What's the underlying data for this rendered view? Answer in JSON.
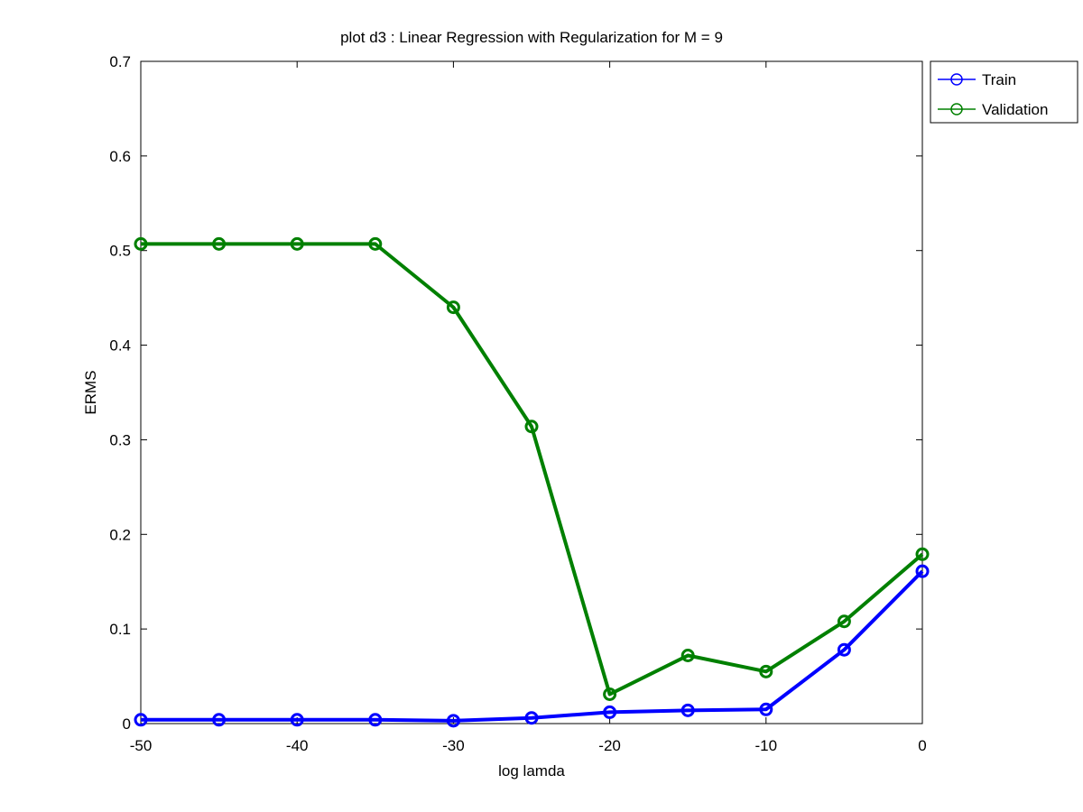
{
  "chart_data": {
    "type": "line",
    "title": "plot d3 : Linear Regression with Regularization for M = 9",
    "xlabel": "log lamda",
    "ylabel": "ERMS",
    "xlim": [
      -50,
      0
    ],
    "ylim": [
      0,
      0.7
    ],
    "xticks": [
      -50,
      -40,
      -30,
      -20,
      -10,
      0
    ],
    "xtick_labels": [
      "-50",
      "-40",
      "-30",
      "-20",
      "-10",
      "0"
    ],
    "yticks": [
      0,
      0.1,
      0.2,
      0.3,
      0.4,
      0.5,
      0.6,
      0.7
    ],
    "ytick_labels": [
      "0",
      "0.1",
      "0.2",
      "0.3",
      "0.4",
      "0.5",
      "0.6",
      "0.7"
    ],
    "grid": false,
    "legend_position": "outside-top-right",
    "x": [
      -50,
      -45,
      -40,
      -35,
      -30,
      -25,
      -20,
      -15,
      -10,
      -5,
      0
    ],
    "series": [
      {
        "name": "Train",
        "color": "#0000ff",
        "marker": "circle",
        "values": [
          0.004,
          0.004,
          0.004,
          0.004,
          0.003,
          0.006,
          0.012,
          0.014,
          0.015,
          0.078,
          0.161
        ]
      },
      {
        "name": "Validation",
        "color": "#008000",
        "marker": "circle",
        "values": [
          0.507,
          0.507,
          0.507,
          0.507,
          0.44,
          0.314,
          0.031,
          0.072,
          0.055,
          0.108,
          0.179
        ]
      }
    ]
  }
}
